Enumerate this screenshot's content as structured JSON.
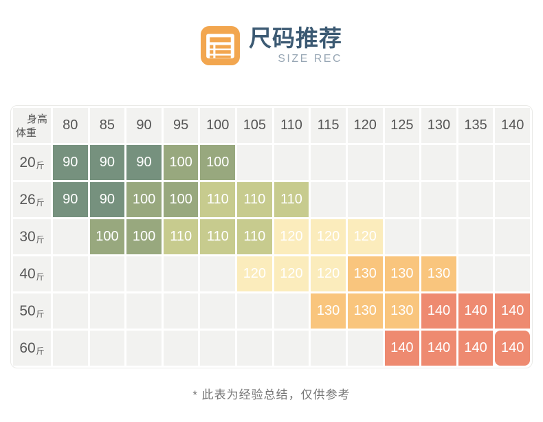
{
  "header": {
    "title": "尺码推荐",
    "subtitle": "SIZE REC"
  },
  "colors": {
    "brand_orange": "#F2A64F",
    "title_blue": "#3C5A73",
    "subtitle_gray": "#97A6B4",
    "table_border": "#EAEAE7",
    "empty_cell_bg": "#F2F2F0",
    "cell_text": "#FFFFFF",
    "label_text": "#555555",
    "footnote_text": "#757575"
  },
  "chart_data": {
    "type": "heatmap",
    "title": "尺码推荐",
    "subtitle": "SIZE REC",
    "corner": {
      "top": "身高",
      "bottom": "体重"
    },
    "x_axis_label": "身高",
    "y_axis_label": "体重",
    "columns": [
      "80",
      "85",
      "90",
      "95",
      "100",
      "105",
      "110",
      "115",
      "120",
      "125",
      "130",
      "135",
      "140"
    ],
    "rows": [
      {
        "label": "20",
        "unit": "斤",
        "cells": [
          "90",
          "90",
          "90",
          "100",
          "100",
          "",
          "",
          "",
          "",
          "",
          "",
          "",
          ""
        ]
      },
      {
        "label": "26",
        "unit": "斤",
        "cells": [
          "90",
          "90",
          "100",
          "100",
          "110",
          "110",
          "110",
          "",
          "",
          "",
          "",
          "",
          ""
        ]
      },
      {
        "label": "30",
        "unit": "斤",
        "cells": [
          "",
          "100",
          "100",
          "110",
          "110",
          "110",
          "120",
          "120",
          "120",
          "",
          "",
          "",
          ""
        ]
      },
      {
        "label": "40",
        "unit": "斤",
        "cells": [
          "",
          "",
          "",
          "",
          "",
          "120",
          "120",
          "120",
          "130",
          "130",
          "130",
          "",
          ""
        ]
      },
      {
        "label": "50",
        "unit": "斤",
        "cells": [
          "",
          "",
          "",
          "",
          "",
          "",
          "",
          "130",
          "130",
          "130",
          "140",
          "140",
          "140"
        ]
      },
      {
        "label": "60",
        "unit": "斤",
        "cells": [
          "",
          "",
          "",
          "",
          "",
          "",
          "",
          "",
          "",
          "140",
          "140",
          "140",
          "140"
        ]
      }
    ],
    "value_colors": {
      "90": "#76917E",
      "100": "#98A87E",
      "110": "#C7CB8E",
      "120": "#FBECBC",
      "130": "#F9C57D",
      "140": "#EE8A70"
    },
    "footnote": "* 此表为经验总结，仅供参考"
  }
}
